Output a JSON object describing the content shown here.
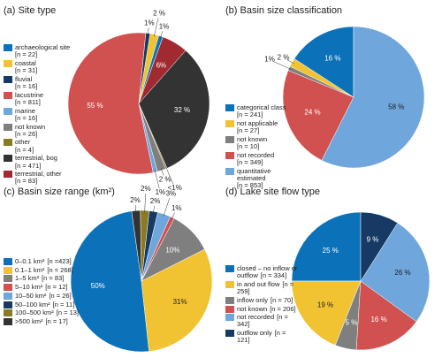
{
  "chart_data": [
    {
      "type": "pie",
      "title": "(a) Site type",
      "categories": [
        "archaeological site",
        "coastal",
        "fluvial",
        "lacustrine",
        "marine",
        "not known",
        "other",
        "terrestrial, bog",
        "terrestrial, other"
      ],
      "counts": [
        "[n = 22]",
        "[n = 31]",
        "[n = 16]",
        "[n = 811]",
        "[n = 16]",
        "[n = 26]",
        "[n = 4]",
        "[n = 471]",
        "[n = 83]"
      ],
      "values": [
        1,
        2,
        1,
        55,
        1,
        2,
        0.3,
        32,
        6
      ],
      "value_labels": [
        "1%",
        "2 %",
        "1%",
        "55 %",
        "1%",
        "2 %",
        "<1%",
        "32 %",
        "6%"
      ],
      "colors": [
        "#0b72b9",
        "#f1c232",
        "#163a63",
        "#d0514f",
        "#6fa6dc",
        "#7f7f7f",
        "#8a7a22",
        "#333333",
        "#a02a30"
      ]
    },
    {
      "type": "pie",
      "title": "(b) Basin size classification",
      "categories": [
        "categorical class",
        "not applicable",
        "not known",
        "not recorded",
        "quantitative estimated"
      ],
      "counts": [
        "[n = 241]",
        "[n = 27]",
        "[n = 10]",
        "[n = 349]",
        "[n = 853]"
      ],
      "values": [
        16,
        2,
        1,
        24,
        58
      ],
      "value_labels": [
        "16 %",
        "2 %",
        "1%",
        "24 %",
        "58 %"
      ],
      "colors": [
        "#0b72b9",
        "#f1c232",
        "#7f7f7f",
        "#d0514f",
        "#6fa6dc"
      ]
    },
    {
      "type": "pie",
      "title": "(c) Basin size range (km²)",
      "categories": [
        "0–0.1 km²",
        "0.1–1 km²",
        "1–5 km²",
        "5–10 km²",
        "10–50 km²",
        "50–100 km²",
        "100–500 km²",
        ">500 km²"
      ],
      "counts": [
        "[n =423]",
        "[n = 268]",
        "[n = 83]",
        "[n = 12]",
        "[n = 26]",
        "[n = 11]",
        "[n = 13]",
        "[n = 17]"
      ],
      "values": [
        50,
        31,
        10,
        1,
        3,
        2,
        2,
        2
      ],
      "value_labels": [
        "50%",
        "31%",
        "10%",
        "1%",
        "3%",
        "2%",
        "2%",
        "2%"
      ],
      "colors": [
        "#0b72b9",
        "#f1c232",
        "#7f7f7f",
        "#d0514f",
        "#6fa6dc",
        "#163a63",
        "#8a7a22",
        "#333333"
      ]
    },
    {
      "type": "pie",
      "title": "(d) Lake site flow type",
      "categories": [
        "closed – no inflow or outflow",
        "in and out flow",
        "inflow only",
        "not known",
        "not recorded",
        "outflow only"
      ],
      "counts": [
        "[n = 334]",
        "[n = 259]",
        "[n = 70]",
        "[n = 206]",
        "[n = 342]",
        "[n = 121]"
      ],
      "values": [
        25,
        19,
        5,
        16,
        26,
        9
      ],
      "value_labels": [
        "25 %",
        "19 %",
        "5 %",
        "16 %",
        "26 %",
        "9 %"
      ],
      "colors": [
        "#0b72b9",
        "#f1c232",
        "#7f7f7f",
        "#d0514f",
        "#6fa6dc",
        "#163a63"
      ]
    }
  ]
}
